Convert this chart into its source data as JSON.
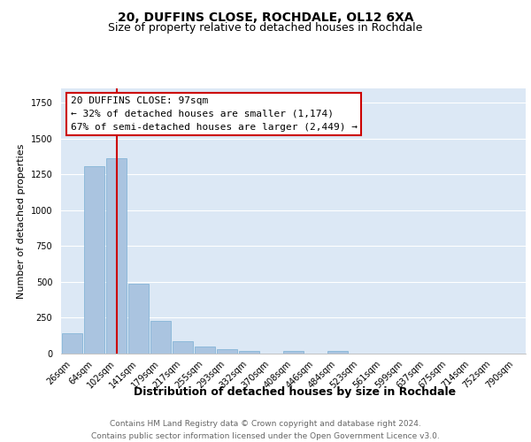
{
  "title1": "20, DUFFINS CLOSE, ROCHDALE, OL12 6XA",
  "title2": "Size of property relative to detached houses in Rochdale",
  "xlabel": "Distribution of detached houses by size in Rochdale",
  "ylabel": "Number of detached properties",
  "bar_labels": [
    "26sqm",
    "64sqm",
    "102sqm",
    "141sqm",
    "179sqm",
    "217sqm",
    "255sqm",
    "293sqm",
    "332sqm",
    "370sqm",
    "408sqm",
    "446sqm",
    "484sqm",
    "523sqm",
    "561sqm",
    "599sqm",
    "637sqm",
    "675sqm",
    "714sqm",
    "752sqm",
    "790sqm"
  ],
  "bar_values": [
    140,
    1310,
    1360,
    490,
    230,
    85,
    50,
    30,
    20,
    0,
    20,
    0,
    20,
    0,
    0,
    0,
    0,
    0,
    0,
    0,
    0
  ],
  "bar_color": "#aac4e0",
  "bar_edge_color": "#7aafd4",
  "background_color": "#dce8f5",
  "grid_color": "#ffffff",
  "vline_x_idx": 2,
  "vline_color": "#cc0000",
  "annotation_text": "20 DUFFINS CLOSE: 97sqm\n← 32% of detached houses are smaller (1,174)\n67% of semi-detached houses are larger (2,449) →",
  "annotation_box_color": "#ffffff",
  "annotation_box_edge": "#cc0000",
  "ylim": [
    0,
    1850
  ],
  "footnote": "Contains HM Land Registry data © Crown copyright and database right 2024.\nContains public sector information licensed under the Open Government Licence v3.0.",
  "title_fontsize": 10,
  "subtitle_fontsize": 9,
  "annot_fontsize": 8,
  "ylabel_fontsize": 8,
  "xlabel_fontsize": 9,
  "tick_fontsize": 7,
  "footnote_fontsize": 6.5
}
